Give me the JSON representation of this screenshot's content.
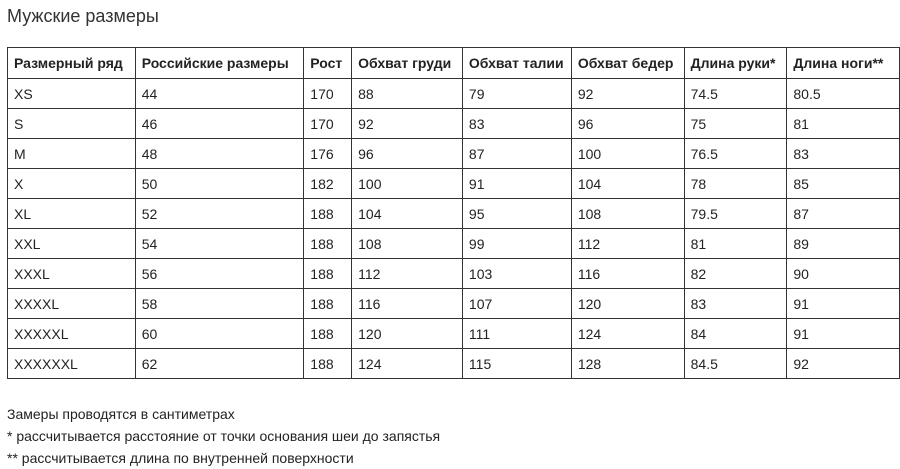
{
  "title": "Мужские размеры",
  "table": {
    "headers": [
      "Размерный ряд",
      "Российские размеры",
      "Рост",
      "Обхват груди",
      "Обхват талии",
      "Обхват бедер",
      "Длина руки*",
      "Длина ноги**"
    ],
    "rows": [
      [
        "XS",
        "44",
        "170",
        "88",
        "79",
        "92",
        "74.5",
        "80.5"
      ],
      [
        "S",
        "46",
        "170",
        "92",
        "83",
        "96",
        "75",
        "81"
      ],
      [
        "M",
        "48",
        "176",
        "96",
        "87",
        "100",
        "76.5",
        "83"
      ],
      [
        "X",
        "50",
        "182",
        "100",
        "91",
        "104",
        "78",
        "85"
      ],
      [
        "XL",
        "52",
        "188",
        "104",
        "95",
        "108",
        "79.5",
        "87"
      ],
      [
        "XXL",
        "54",
        "188",
        "108",
        "99",
        "112",
        "81",
        "89"
      ],
      [
        "XXXL",
        "56",
        "188",
        "112",
        "103",
        "116",
        "82",
        "90"
      ],
      [
        "XXXXL",
        "58",
        "188",
        "116",
        "107",
        "120",
        "83",
        "91"
      ],
      [
        "XXXXXL",
        "60",
        "188",
        "120",
        "111",
        "124",
        "84",
        "91"
      ],
      [
        "XXXXXXL",
        "62",
        "188",
        "124",
        "115",
        "128",
        "84.5",
        "92"
      ]
    ]
  },
  "notes": [
    "Замеры проводятся в сантиметрах",
    "* рассчитывается расстояние от точки основания шеи до запястья",
    "** рассчитывается длина по внутренней поверхности"
  ]
}
